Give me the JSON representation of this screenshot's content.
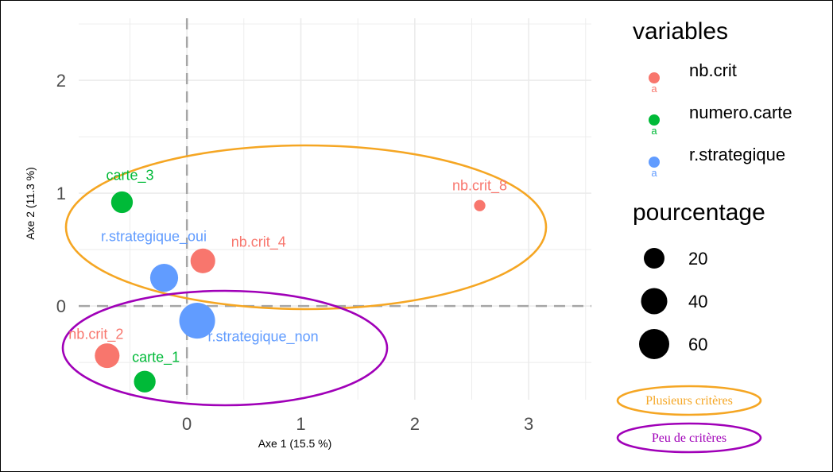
{
  "chart_data": {
    "type": "scatter",
    "xlabel": "Axe 1 (15.5 %)",
    "ylabel": "Axe 2 (11.3 %)",
    "xlim": [
      -0.95,
      3.55
    ],
    "ylim": [
      -0.83,
      2.55
    ],
    "x_ticks": [
      0,
      1,
      2,
      3
    ],
    "y_ticks": [
      0,
      1,
      2
    ],
    "grid": true,
    "reference_lines": [
      {
        "axis": "x",
        "value": 0
      },
      {
        "axis": "y",
        "value": 0
      }
    ],
    "series": [
      {
        "name": "nb.crit",
        "color": "#F8766D",
        "points": [
          {
            "label": "nb.crit_8",
            "x": 2.57,
            "y": 0.89,
            "pourcentage": 4
          },
          {
            "label": "nb.crit_4",
            "x": 0.14,
            "y": 0.4,
            "pourcentage": 30
          },
          {
            "label": "nb.crit_2",
            "x": -0.7,
            "y": -0.44,
            "pourcentage": 30
          }
        ]
      },
      {
        "name": "numero.carte",
        "color": "#00BA38",
        "points": [
          {
            "label": "carte_3",
            "x": -0.57,
            "y": 0.92,
            "pourcentage": 22
          },
          {
            "label": "carte_1",
            "x": -0.37,
            "y": -0.67,
            "pourcentage": 22
          }
        ]
      },
      {
        "name": "r.strategique",
        "color": "#619CFF",
        "points": [
          {
            "label": "r.strategique_oui",
            "x": -0.2,
            "y": 0.25,
            "pourcentage": 40
          },
          {
            "label": "r.strategique_non",
            "x": 0.09,
            "y": -0.13,
            "pourcentage": 70
          }
        ]
      }
    ],
    "legend": {
      "placement": "right",
      "color_title": "variables",
      "color_items": [
        "nb.crit",
        "numero.carte",
        "r.strategique"
      ],
      "color_key_glyph": "a",
      "size_title": "pourcentage",
      "size_items": [
        "20",
        "40",
        "60"
      ]
    },
    "annotations": [
      {
        "label": "Plusieurs critères",
        "color": "#F5A623"
      },
      {
        "label": "Peu de critères",
        "color": "#A000B8"
      }
    ]
  }
}
